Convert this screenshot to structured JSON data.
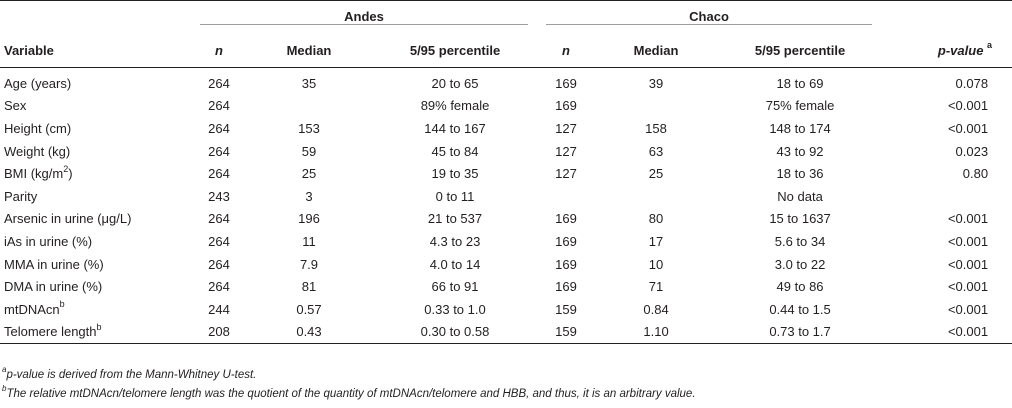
{
  "groups": {
    "andes": "Andes",
    "chaco": "Chaco"
  },
  "headers": {
    "variable": "Variable",
    "n1": "n",
    "median1": "Median",
    "percentile1": "5/95 percentile",
    "n2": "n",
    "median2": "Median",
    "percentile2": "5/95 percentile",
    "pvalue": "p-value",
    "pvalue_mark": "a"
  },
  "rows": [
    {
      "variable": "Age (years)",
      "sup": "",
      "n1": "264",
      "median1": "35",
      "pct1": "20 to 65",
      "n2": "169",
      "median2": "39",
      "pct2": "18 to 69",
      "p": "0.078"
    },
    {
      "variable": "Sex",
      "sup": "",
      "n1": "264",
      "median1": "",
      "pct1": "89% female",
      "n2": "169",
      "median2": "",
      "pct2": "75% female",
      "p": "<0.001"
    },
    {
      "variable": "Height (cm)",
      "sup": "",
      "n1": "264",
      "median1": "153",
      "pct1": "144 to 167",
      "n2": "127",
      "median2": "158",
      "pct2": "148 to 174",
      "p": "<0.001"
    },
    {
      "variable": "Weight (kg)",
      "sup": "",
      "n1": "264",
      "median1": "59",
      "pct1": "45 to 84",
      "n2": "127",
      "median2": "63",
      "pct2": "43 to 92",
      "p": "0.023"
    },
    {
      "variable": "BMI (kg/m",
      "sup": "2",
      "suffix": ")",
      "n1": "264",
      "median1": "25",
      "pct1": "19 to 35",
      "n2": "127",
      "median2": "25",
      "pct2": "18 to 36",
      "p": "0.80"
    },
    {
      "variable": "Parity",
      "sup": "",
      "n1": "243",
      "median1": "3",
      "pct1": "0 to 11",
      "n2": "",
      "median2": "",
      "pct2": "No data",
      "p": ""
    },
    {
      "variable": "Arsenic in urine (μg/L)",
      "sup": "",
      "n1": "264",
      "median1": "196",
      "pct1": "21 to 537",
      "n2": "169",
      "median2": "80",
      "pct2": "15 to 1637",
      "p": "<0.001"
    },
    {
      "variable": "iAs in urine (%)",
      "sup": "",
      "n1": "264",
      "median1": "11",
      "pct1": "4.3 to 23",
      "n2": "169",
      "median2": "17",
      "pct2": "5.6 to 34",
      "p": "<0.001"
    },
    {
      "variable": "MMA in urine (%)",
      "sup": "",
      "n1": "264",
      "median1": "7.9",
      "pct1": "4.0 to 14",
      "n2": "169",
      "median2": "10",
      "pct2": "3.0 to 22",
      "p": "<0.001"
    },
    {
      "variable": "DMA in urine (%)",
      "sup": "",
      "n1": "264",
      "median1": "81",
      "pct1": "66 to 91",
      "n2": "169",
      "median2": "71",
      "pct2": "49 to 86",
      "p": "<0.001"
    },
    {
      "variable": "mtDNAcn",
      "sup": "b",
      "n1": "244",
      "median1": "0.57",
      "pct1": "0.33 to 1.0",
      "n2": "159",
      "median2": "0.84",
      "pct2": "0.44 to 1.5",
      "p": "<0.001"
    },
    {
      "variable": "Telomere length",
      "sup": "b",
      "n1": "208",
      "median1": "0.43",
      "pct1": "0.30 to 0.58",
      "n2": "159",
      "median2": "1.10",
      "pct2": "0.73 to 1.7",
      "p": "<0.001"
    }
  ],
  "footnotes": [
    {
      "mark": "a",
      "text": "p-value is derived from the Mann-Whitney U-test."
    },
    {
      "mark": "b",
      "text": "The relative mtDNAcn/telomere length was the quotient of the quantity of mtDNAcn/telomere and HBB, and thus, it is an arbitrary value."
    }
  ]
}
